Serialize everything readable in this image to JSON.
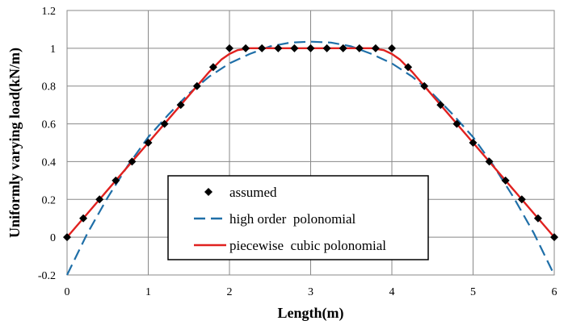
{
  "chart_data": {
    "type": "line",
    "xlabel": "Length(m)",
    "ylabel": "Uniformly varying load(kN/m)",
    "xlim": [
      0,
      6
    ],
    "ylim": [
      -0.2,
      1.2
    ],
    "xticks": [
      0,
      1,
      2,
      3,
      4,
      5,
      6
    ],
    "yticks": [
      -0.2,
      0,
      0.2,
      0.4,
      0.6,
      0.8,
      1,
      1.2
    ],
    "xtick_labels": [
      "0",
      "1",
      "2",
      "3",
      "4",
      "5",
      "6"
    ],
    "ytick_labels": [
      "-0.2",
      "0",
      "0.2",
      "0.4",
      "0.6",
      "0.8",
      "1",
      "1.2"
    ],
    "grid": true,
    "legend_position": "bottom-center",
    "series": [
      {
        "name": "assumed",
        "style": "markers",
        "marker": "diamond",
        "color": "#000000",
        "x": [
          0,
          0.2,
          0.4,
          0.6,
          0.8,
          1.0,
          1.2,
          1.4,
          1.6,
          1.8,
          2.0,
          2.2,
          2.4,
          2.6,
          2.8,
          3.0,
          3.2,
          3.4,
          3.6,
          3.8,
          4.0,
          4.2,
          4.4,
          4.6,
          4.8,
          5.0,
          5.2,
          5.4,
          5.6,
          5.8,
          6.0
        ],
        "y": [
          0,
          0.1,
          0.2,
          0.3,
          0.4,
          0.5,
          0.6,
          0.7,
          0.8,
          0.9,
          1,
          1,
          1,
          1,
          1,
          1,
          1,
          1,
          1,
          1,
          1,
          0.9,
          0.8,
          0.7,
          0.6,
          0.5,
          0.4,
          0.3,
          0.2,
          0.1,
          0
        ]
      },
      {
        "name": "high order  polonomial",
        "style": "dashed",
        "color": "#1f6fa8",
        "x": [
          0,
          0.25,
          0.5,
          0.75,
          1.0,
          1.25,
          1.5,
          1.75,
          2.0,
          2.25,
          2.5,
          2.75,
          3.0,
          3.25,
          3.5,
          3.75,
          4.0,
          4.25,
          4.5,
          4.75,
          5.0,
          5.25,
          5.5,
          5.75,
          6.0
        ],
        "y": [
          -0.2,
          0.02,
          0.21,
          0.38,
          0.53,
          0.65,
          0.76,
          0.85,
          0.92,
          0.97,
          1.01,
          1.03,
          1.035,
          1.03,
          1.01,
          0.97,
          0.92,
          0.85,
          0.76,
          0.65,
          0.53,
          0.38,
          0.21,
          0.02,
          -0.2
        ]
      },
      {
        "name": "piecewise  cubic polonomial",
        "style": "solid",
        "color": "#e0211f",
        "x": [
          0,
          0.25,
          0.5,
          0.75,
          1.0,
          1.25,
          1.5,
          1.75,
          1.9,
          2.0,
          2.1,
          2.25,
          2.5,
          2.75,
          3.0,
          3.25,
          3.5,
          3.75,
          3.9,
          4.0,
          4.1,
          4.25,
          4.5,
          4.75,
          5.0,
          5.25,
          5.5,
          5.75,
          6.0
        ],
        "y": [
          0,
          0.125,
          0.25,
          0.375,
          0.5,
          0.625,
          0.75,
          0.875,
          0.94,
          0.97,
          0.99,
          1,
          1,
          1,
          1,
          1,
          1,
          1,
          0.99,
          0.97,
          0.94,
          0.875,
          0.75,
          0.625,
          0.5,
          0.375,
          0.25,
          0.125,
          0
        ]
      }
    ]
  }
}
